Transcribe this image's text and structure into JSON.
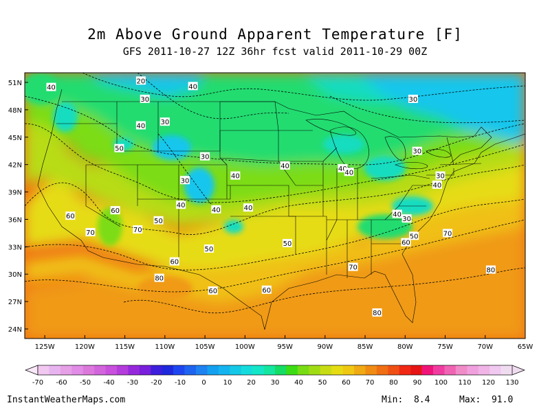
{
  "title": "2m Above Ground Apparent Temperature [F]",
  "subtitle": "GFS 2011-10-27 12Z 36hr fcst valid 2011-10-29 00Z",
  "lat_labels": [
    "51N",
    "48N",
    "45N",
    "42N",
    "39N",
    "36N",
    "33N",
    "30N",
    "27N",
    "24N"
  ],
  "lon_labels": [
    "125W",
    "120W",
    "115W",
    "110W",
    "105W",
    "100W",
    "95W",
    "90W",
    "85W",
    "80W",
    "75W",
    "70W",
    "65W"
  ],
  "contour_labels": [
    {
      "text": "20",
      "lon": -113,
      "lat": 51.2
    },
    {
      "text": "40",
      "lon": -124.2,
      "lat": 50.5
    },
    {
      "text": "40",
      "lon": -106.5,
      "lat": 50.6
    },
    {
      "text": "30",
      "lon": -112.5,
      "lat": 49.2
    },
    {
      "text": "30",
      "lon": -79,
      "lat": 49.2
    },
    {
      "text": "30",
      "lon": -110,
      "lat": 46.7
    },
    {
      "text": "40",
      "lon": -113,
      "lat": 46.3
    },
    {
      "text": "50",
      "lon": -115.7,
      "lat": 43.8
    },
    {
      "text": "30",
      "lon": -105,
      "lat": 42.9
    },
    {
      "text": "30",
      "lon": -78.5,
      "lat": 43.5
    },
    {
      "text": "40",
      "lon": -95,
      "lat": 41.9
    },
    {
      "text": "40",
      "lon": -87.8,
      "lat": 41.6
    },
    {
      "text": "40",
      "lon": -87,
      "lat": 41.2
    },
    {
      "text": "40",
      "lon": -101.2,
      "lat": 40.8
    },
    {
      "text": "30",
      "lon": -75.6,
      "lat": 40.8
    },
    {
      "text": "40",
      "lon": -76,
      "lat": 39.8
    },
    {
      "text": "30",
      "lon": -107.5,
      "lat": 40.3
    },
    {
      "text": "40",
      "lon": -108,
      "lat": 37.6
    },
    {
      "text": "40",
      "lon": -103.6,
      "lat": 37.1
    },
    {
      "text": "40",
      "lon": -99.6,
      "lat": 37.3
    },
    {
      "text": "40",
      "lon": -81,
      "lat": 36.6
    },
    {
      "text": "30",
      "lon": -79.8,
      "lat": 36.1
    },
    {
      "text": "60",
      "lon": -116.2,
      "lat": 37
    },
    {
      "text": "60",
      "lon": -121.8,
      "lat": 36.4
    },
    {
      "text": "50",
      "lon": -110.8,
      "lat": 35.9
    },
    {
      "text": "70",
      "lon": -113.4,
      "lat": 34.9
    },
    {
      "text": "70",
      "lon": -119.3,
      "lat": 34.6
    },
    {
      "text": "50",
      "lon": -78.9,
      "lat": 34.2
    },
    {
      "text": "70",
      "lon": -74.7,
      "lat": 34.5
    },
    {
      "text": "60",
      "lon": -79.9,
      "lat": 33.5
    },
    {
      "text": "50",
      "lon": -94.7,
      "lat": 33.4
    },
    {
      "text": "50",
      "lon": -104.5,
      "lat": 32.8
    },
    {
      "text": "60",
      "lon": -108.8,
      "lat": 31.4
    },
    {
      "text": "70",
      "lon": -86.5,
      "lat": 30.8
    },
    {
      "text": "80",
      "lon": -110.7,
      "lat": 29.6
    },
    {
      "text": "80",
      "lon": -69.3,
      "lat": 30.5
    },
    {
      "text": "60",
      "lon": -104,
      "lat": 28.2
    },
    {
      "text": "60",
      "lon": -97.3,
      "lat": 28.3
    },
    {
      "text": "80",
      "lon": -83.5,
      "lat": 25.8
    }
  ],
  "colorbar": {
    "labels": [
      "-70",
      "-60",
      "-50",
      "-40",
      "-30",
      "-20",
      "-10",
      "0",
      "10",
      "20",
      "30",
      "40",
      "50",
      "60",
      "70",
      "80",
      "90",
      "100",
      "110",
      "120",
      "130"
    ],
    "colors": [
      "#f0c8f0",
      "#e8b4f0",
      "#e6a0e6",
      "#e18ce6",
      "#dc78dc",
      "#d264dc",
      "#c850dc",
      "#b43cdc",
      "#9628dc",
      "#781edc",
      "#3c1edc",
      "#1e28dc",
      "#1e46f0",
      "#1e64f0",
      "#1e82f0",
      "#14a0f0",
      "#14b4f0",
      "#14c8e6",
      "#14dcdc",
      "#14e6c8",
      "#14e6a0",
      "#14dc64",
      "#3cdc14",
      "#78dc14",
      "#a0dc14",
      "#c8dc14",
      "#e6dc14",
      "#f0c814",
      "#f0aa14",
      "#f08c14",
      "#f06e14",
      "#f05014",
      "#f02814",
      "#e61414",
      "#f01478",
      "#f03ca0",
      "#f064b4",
      "#f08cc8",
      "#f0a0dc",
      "#f0b4e6",
      "#f0c8f0",
      "#f0dcf0"
    ]
  },
  "footer": {
    "site": "InstantWeatherMaps.com",
    "min_label": "Min:",
    "min_value": "8.4",
    "max_label": "Max:",
    "max_value": "91.0"
  },
  "temp_palette": {
    "t15": "#12c6ec",
    "t25": "#12dcc0",
    "t35": "#22dc70",
    "t45": "#7cdc16",
    "t55": "#b8dc12",
    "t65": "#e6dc12",
    "t75": "#f0c014",
    "t85": "#f09a14",
    "t95": "#f07014"
  }
}
